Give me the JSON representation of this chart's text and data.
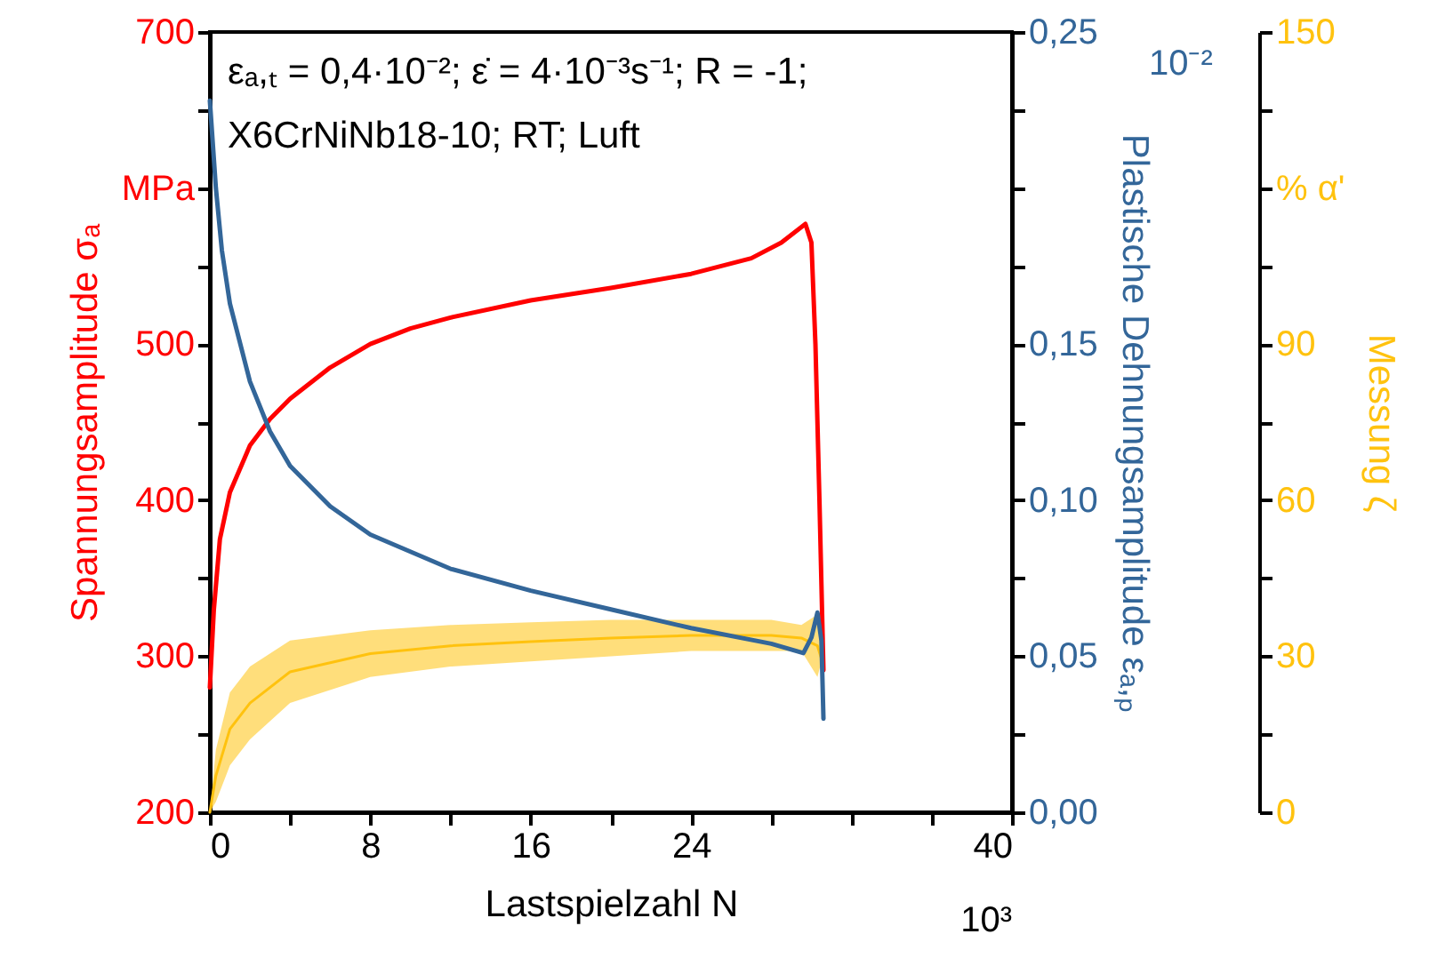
{
  "chart_data": {
    "type": "line",
    "xlabel": "Lastspielzahl N",
    "ylabel": "Spannungsamplitude σₐ",
    "y2label": "Plastische Dehnungsamplitude εₐ,ₚ",
    "y3label": "Messung ζ",
    "annotations": [
      "εₐ,ₜ = 0,4·10⁻²; ε̇ = 4·10⁻³s⁻¹; R = -1;",
      "X6CrNiNb18-10; RT; Luft",
      "10³",
      "10⁻²"
    ],
    "xlim": [
      0,
      40
    ],
    "xticks": [
      0,
      {
        "value": 4,
        "label": null
      },
      8,
      {
        "value": 12,
        "label": null
      },
      16,
      {
        "value": 20,
        "label": null
      },
      24,
      {
        "value": 28,
        "label": null
      },
      {
        "value": 32,
        "label": null
      },
      {
        "value": 36,
        "label": null
      },
      40
    ],
    "ylim": [
      200,
      700
    ],
    "yticks": [
      200,
      {
        "value": 250,
        "label": null
      },
      300,
      {
        "value": 350,
        "label": null
      },
      400,
      {
        "value": 450,
        "label": null
      },
      500,
      {
        "value": 550,
        "label": null
      },
      {
        "value": 600,
        "label": "MPa"
      },
      {
        "value": 650,
        "label": null
      },
      700
    ],
    "y2lim": [
      0,
      0.25
    ],
    "y2ticks": [
      {
        "value": 0,
        "label": "0,00"
      },
      {
        "value": 0.025,
        "label": null
      },
      {
        "value": 0.05,
        "label": "0,05"
      },
      {
        "value": 0.075,
        "label": null
      },
      {
        "value": 0.1,
        "label": "0,10"
      },
      {
        "value": 0.125,
        "label": null
      },
      {
        "value": 0.15,
        "label": "0,15"
      },
      {
        "value": 0.175,
        "label": null
      },
      {
        "value": 0.2,
        "label": null
      },
      {
        "value": 0.225,
        "label": null
      },
      {
        "value": 0.25,
        "label": "0,25"
      }
    ],
    "y3lim": [
      0,
      150
    ],
    "y3ticks": [
      0,
      {
        "value": 15,
        "label": null
      },
      30,
      {
        "value": 45,
        "label": null
      },
      60,
      {
        "value": 75,
        "label": null
      },
      90,
      {
        "value": 105,
        "label": null
      },
      {
        "value": 120,
        "label": "% α'"
      },
      {
        "value": 135,
        "label": null
      },
      150
    ],
    "series": [
      {
        "axis": "y3",
        "color": "#ffc20e",
        "x": [
          0,
          0.3,
          1,
          2,
          4,
          8,
          12,
          16,
          20,
          24,
          28,
          29.5,
          30.3,
          30.5
        ],
        "values": [
          0,
          7,
          16,
          21,
          27,
          30.5,
          32,
          32.8,
          33.5,
          34,
          34,
          33.5,
          32,
          29.5
        ],
        "lower": [
          0,
          2,
          9,
          14,
          21,
          26,
          28,
          29,
          30,
          31,
          31,
          31,
          26,
          29
        ],
        "upper": [
          0,
          12,
          23,
          28,
          33,
          35,
          36,
          36.5,
          37,
          37,
          37,
          36,
          38,
          30
        ]
      },
      {
        "axis": "y",
        "color": "#ff0000",
        "x": [
          0,
          0.2,
          0.5,
          1,
          2,
          3,
          4,
          6,
          8,
          10,
          12,
          16,
          20,
          24,
          27,
          28.5,
          29.7,
          30,
          30.2,
          30.4,
          30.6
        ],
        "values": [
          280,
          330,
          375,
          405,
          435,
          452,
          465,
          485,
          500,
          510,
          517,
          528,
          536,
          545,
          555,
          565,
          577,
          565,
          500,
          400,
          291
        ]
      },
      {
        "axis": "y2",
        "color": "#336699",
        "x": [
          0,
          0.3,
          0.6,
          1,
          2,
          3,
          4,
          6,
          8,
          12,
          16,
          20,
          24,
          28,
          29.6,
          30,
          30.3,
          30.5,
          30.6
        ],
        "values": [
          0.228,
          0.2,
          0.18,
          0.163,
          0.138,
          0.122,
          0.111,
          0.098,
          0.089,
          0.078,
          0.071,
          0.065,
          0.059,
          0.054,
          0.051,
          0.056,
          0.064,
          0.055,
          0.03
        ]
      }
    ]
  }
}
